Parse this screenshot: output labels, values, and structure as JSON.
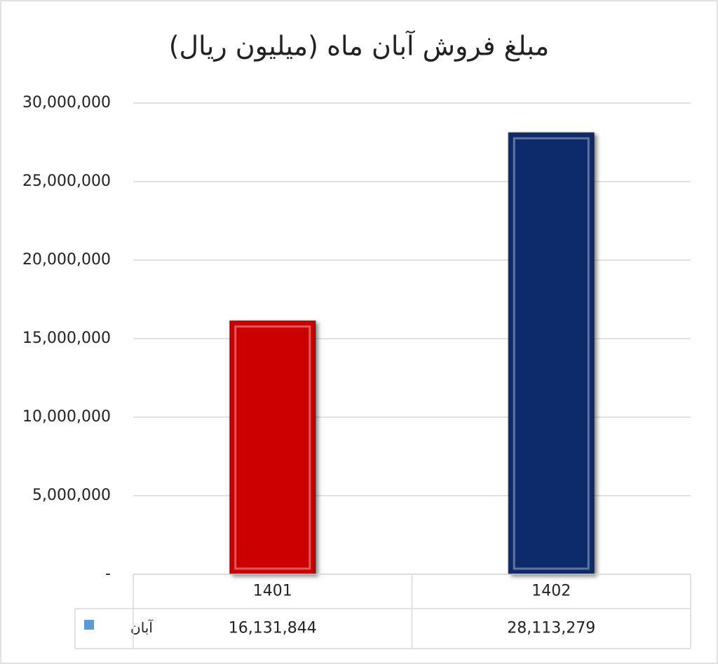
{
  "chart_data": {
    "type": "bar",
    "title": "مبلغ فروش آبان ماه (میلیون ریال)",
    "categories": [
      "1401",
      "1402"
    ],
    "series": [
      {
        "name": "آبان",
        "color": "#5b9bd5",
        "point_colors": [
          "#cc0000",
          "#0d2a6b"
        ],
        "values": [
          16131844,
          28113279
        ],
        "value_labels": [
          "16,131,844",
          "28,113,279"
        ]
      }
    ],
    "ylim": [
      0,
      30000000
    ],
    "yticks": [
      {
        "value": 0,
        "label": "-"
      },
      {
        "value": 5000000,
        "label": "5,000,000"
      },
      {
        "value": 10000000,
        "label": "10,000,000"
      },
      {
        "value": 15000000,
        "label": "15,000,000"
      },
      {
        "value": 20000000,
        "label": "20,000,000"
      },
      {
        "value": 25000000,
        "label": "25,000,000"
      },
      {
        "value": 30000000,
        "label": "30,000,000"
      }
    ],
    "grid": true,
    "data_table": true
  }
}
